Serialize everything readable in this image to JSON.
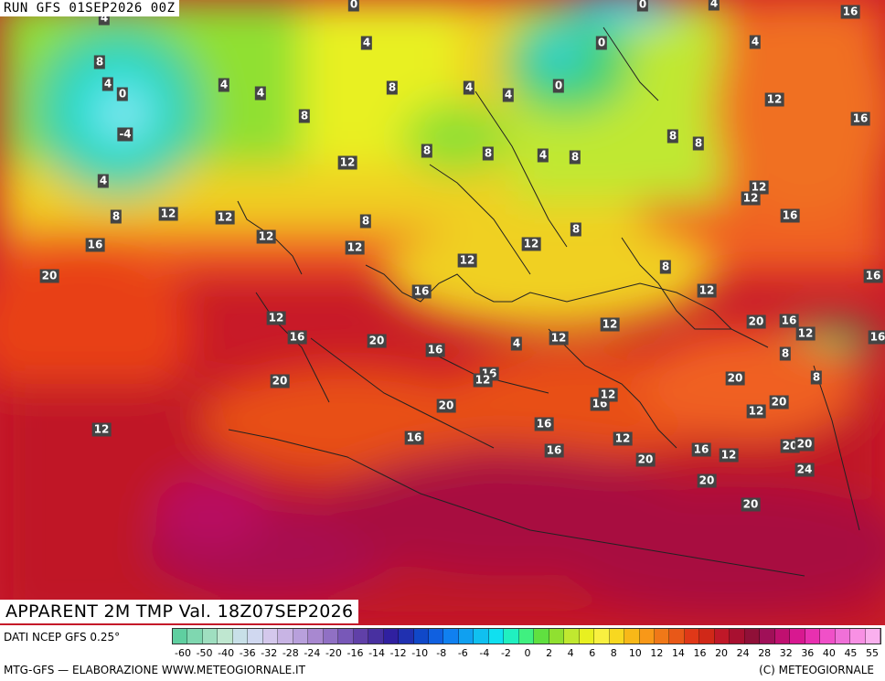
{
  "header": {
    "run": "RUN GFS 01SEP2026 00Z"
  },
  "map": {
    "title": "APPARENT 2M TMP Val. 18Z07SEP2026",
    "value_labels": [
      "0",
      "4",
      "16",
      "4",
      "4",
      "0",
      "8",
      "4",
      "0",
      "0",
      "4",
      "4",
      "8",
      "4",
      "4",
      "4",
      "0",
      "8",
      "12",
      "16",
      "8",
      "-4",
      "8",
      "12",
      "8",
      "4",
      "8",
      "8",
      "4",
      "12",
      "8",
      "12",
      "12",
      "8",
      "12",
      "16",
      "8",
      "12",
      "12",
      "16",
      "12",
      "12",
      "12",
      "8",
      "16",
      "16",
      "12",
      "20",
      "20",
      "20",
      "12",
      "16",
      "16",
      "12",
      "4",
      "16",
      "12",
      "8",
      "16",
      "8",
      "16",
      "12",
      "20",
      "20",
      "16",
      "12",
      "20",
      "12",
      "20",
      "12",
      "16",
      "12",
      "16",
      "20",
      "20",
      "16",
      "12",
      "16",
      "20",
      "24",
      "20",
      "20"
    ]
  },
  "legend": {
    "source": "DATI NCEP GFS 0.25°",
    "credit": "MTG-GFS — ELABORAZIONE WWW.METEOGIORNALE.IT",
    "copyright": "(C) METEOGIORNALE",
    "ticks": [
      "-60",
      "-50",
      "-40",
      "-36",
      "-32",
      "-28",
      "-24",
      "-20",
      "-16",
      "-14",
      "-12",
      "-10",
      "-8",
      "-6",
      "-4",
      "-2",
      "0",
      "2",
      "4",
      "6",
      "8",
      "10",
      "12",
      "14",
      "16",
      "20",
      "24",
      "28",
      "32",
      "36",
      "40",
      "45",
      "55"
    ],
    "colors": [
      "#5fcfa0",
      "#7fd7b0",
      "#9fdfc0",
      "#bfe7d0",
      "#c8e0e8",
      "#d0d8f0",
      "#d4c8ec",
      "#c8b4e4",
      "#b8a0dc",
      "#a888d0",
      "#9070c4",
      "#7858b8",
      "#6040a8",
      "#4830a0",
      "#3020a0",
      "#2030b0",
      "#1048c8",
      "#1060e0",
      "#1080f0",
      "#10a0f0",
      "#10c0f0",
      "#10e0f0",
      "#20f0c0",
      "#40f080",
      "#60e040",
      "#90e030",
      "#c0e830",
      "#e8f020",
      "#f8f040",
      "#f8d820",
      "#f8b818",
      "#f89818",
      "#f07818",
      "#e85818",
      "#e03818",
      "#d02818",
      "#c01828",
      "#a81030",
      "#901038",
      "#a01058",
      "#c01070",
      "#d81890",
      "#e830b0",
      "#f050c8",
      "#f070d8",
      "#f890e4",
      "#fab0ee"
    ]
  }
}
